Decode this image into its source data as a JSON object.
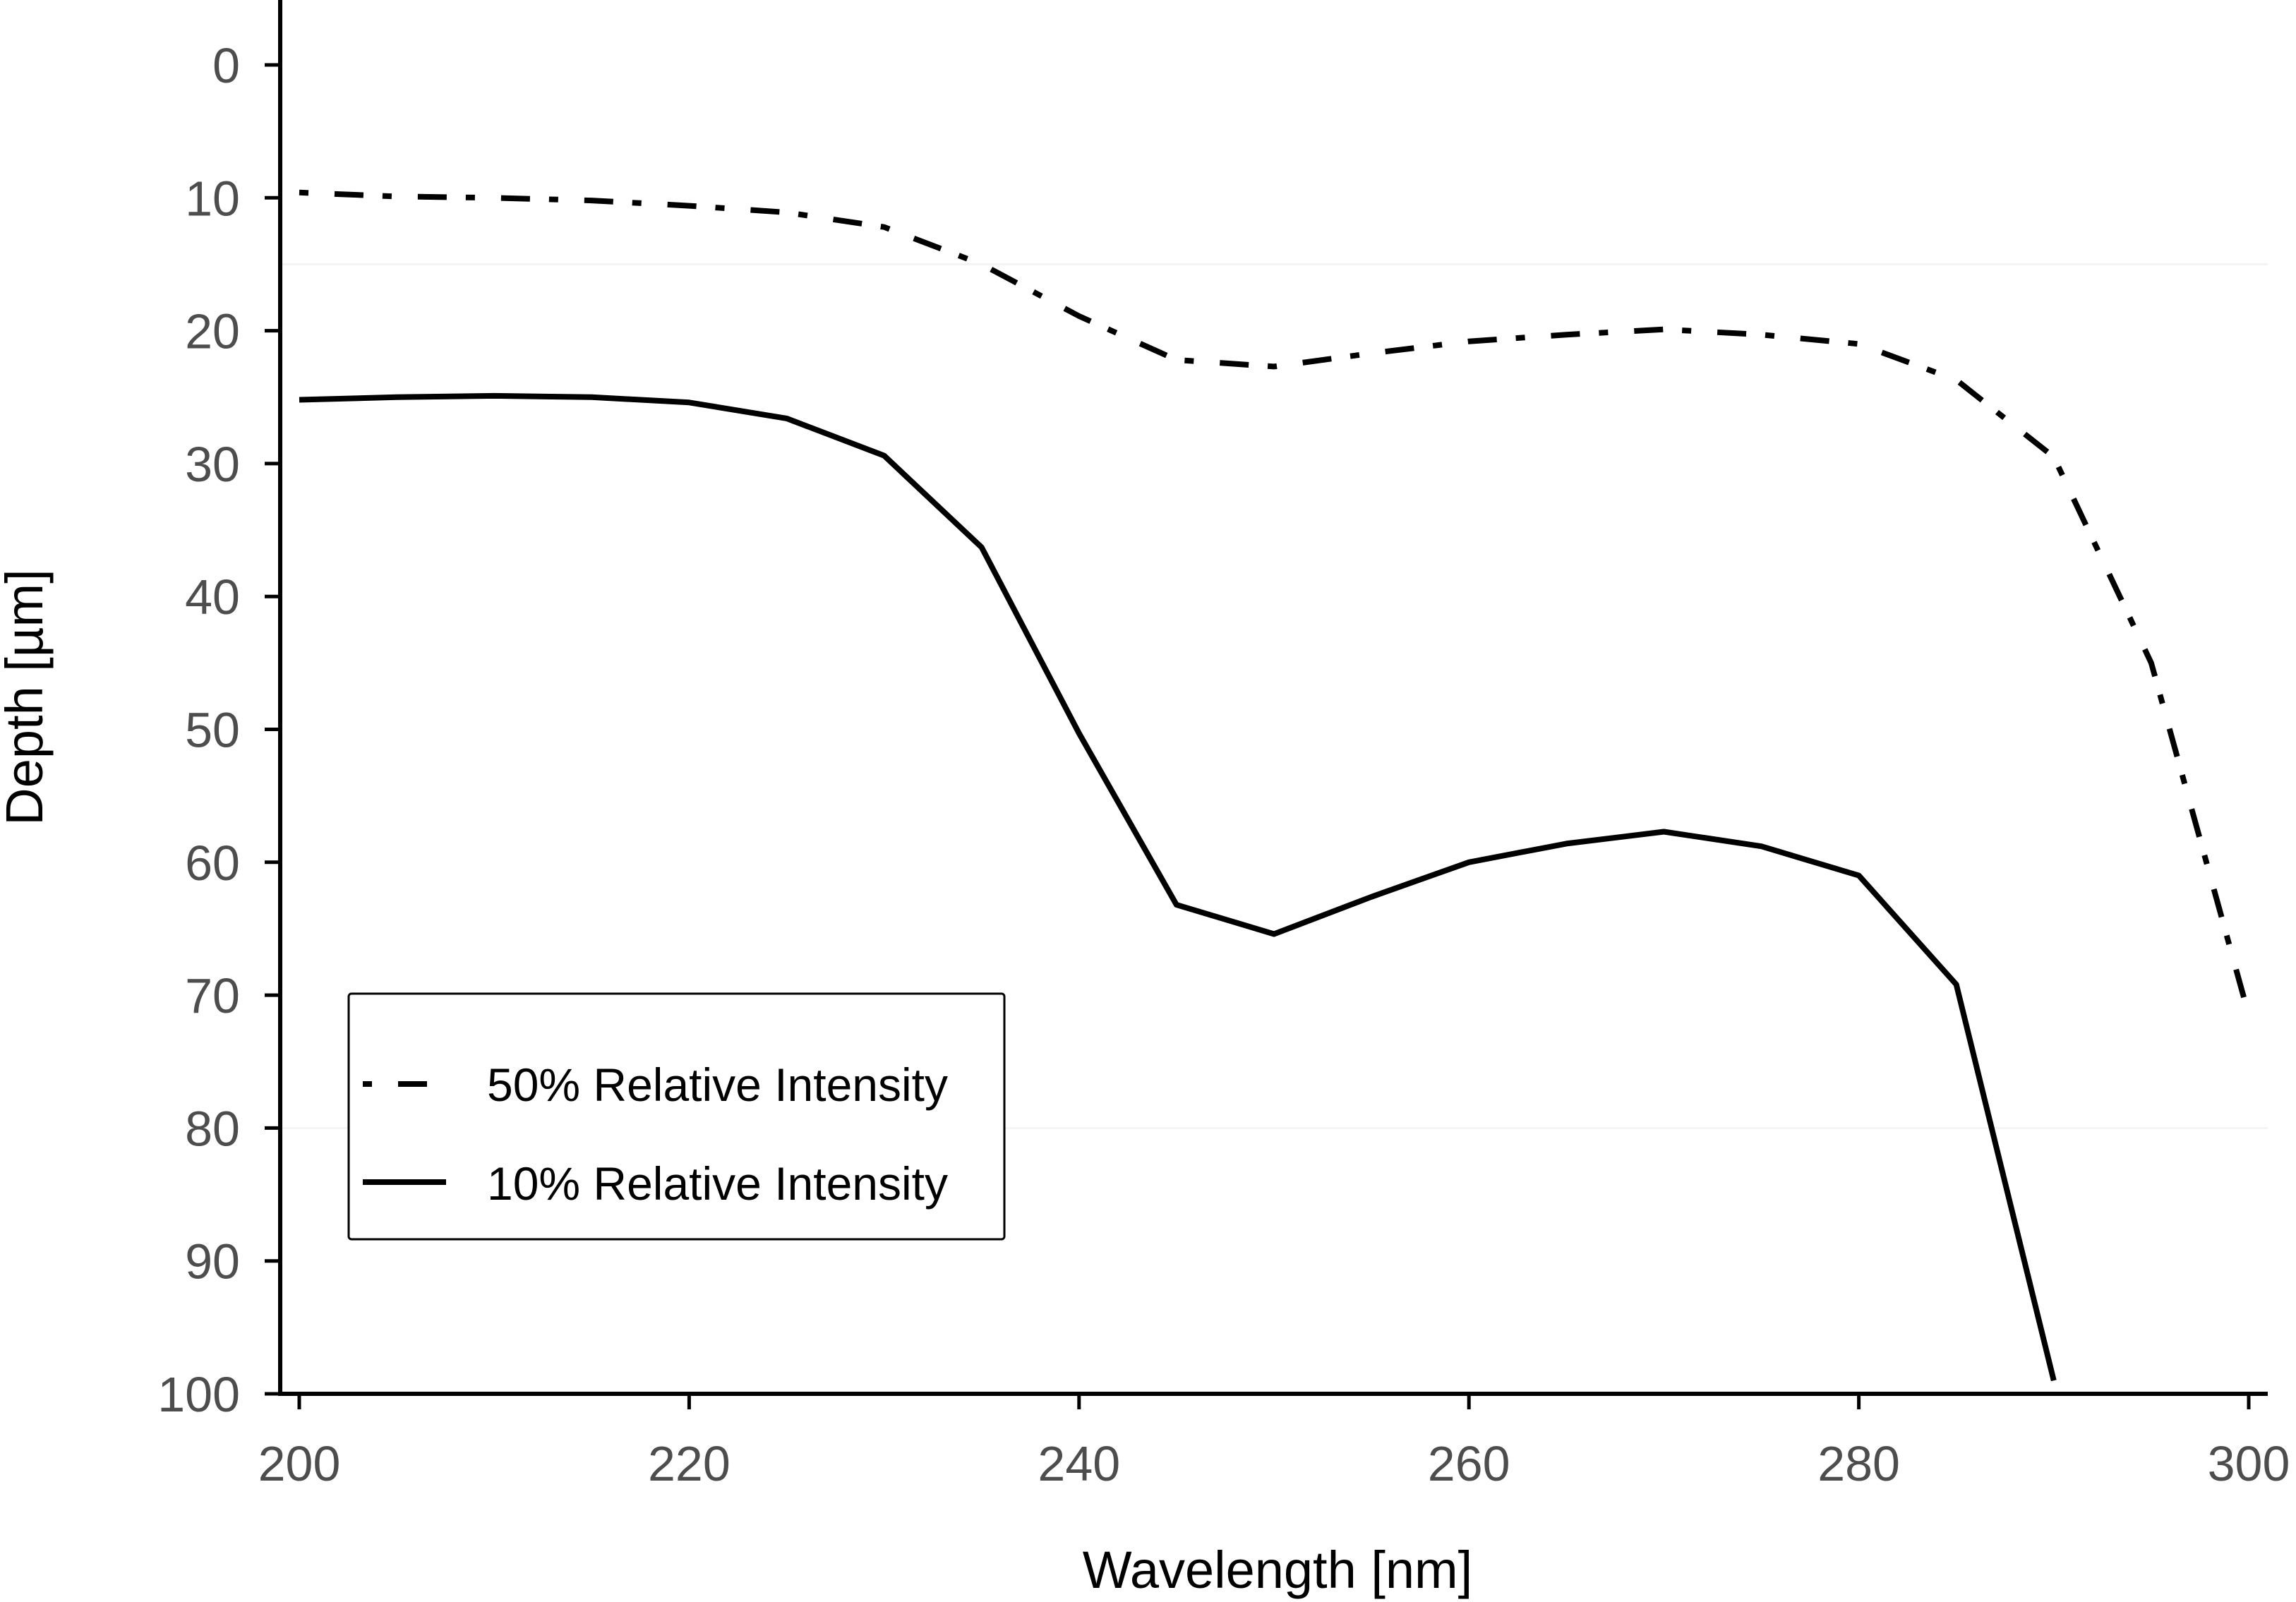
{
  "chart_data": {
    "type": "line",
    "title": "",
    "xlabel": "Wavelength [nm]",
    "ylabel": "Depth [µm]",
    "xlim": [
      199,
      301
    ],
    "ylim": [
      100,
      -5
    ],
    "y_inverted": true,
    "x_ticks": [
      200,
      220,
      240,
      260,
      280,
      300
    ],
    "x_tick_labels": [
      "200",
      "220",
      "240",
      "260",
      "280",
      "300"
    ],
    "y_ticks": [
      0,
      10,
      20,
      30,
      40,
      50,
      60,
      70,
      80,
      90,
      100
    ],
    "y_tick_labels": [
      "0",
      "10",
      "20",
      "30",
      "40",
      "50",
      "60",
      "70",
      "80",
      "90",
      "100"
    ],
    "grid": false,
    "legend_position": "bottom-left",
    "series": [
      {
        "name": "50% Relative Intensity",
        "line_style": "dot-dash",
        "color": "#000000",
        "x": [
          200,
          205,
          210,
          215,
          220,
          225,
          230,
          235,
          240,
          245,
          250,
          255,
          260,
          265,
          270,
          275,
          280,
          285,
          290,
          295,
          300
        ],
        "y": [
          9.6,
          9.9,
          10.0,
          10.2,
          10.6,
          11.1,
          12.2,
          15.0,
          18.9,
          22.2,
          22.7,
          21.7,
          20.8,
          20.3,
          19.9,
          20.3,
          21.0,
          23.7,
          29.5,
          45.0,
          71.5
        ]
      },
      {
        "name": "10% Relative Intensity",
        "line_style": "solid",
        "color": "#000000",
        "x": [
          200,
          205,
          210,
          215,
          220,
          225,
          230,
          235,
          240,
          245,
          250,
          255,
          260,
          265,
          270,
          275,
          280,
          285,
          290
        ],
        "y": [
          25.2,
          25.0,
          24.9,
          25.0,
          25.4,
          26.6,
          29.4,
          36.3,
          50.3,
          63.2,
          65.4,
          62.6,
          60.0,
          58.6,
          57.7,
          58.8,
          61.0,
          69.2,
          99.0
        ]
      }
    ]
  }
}
